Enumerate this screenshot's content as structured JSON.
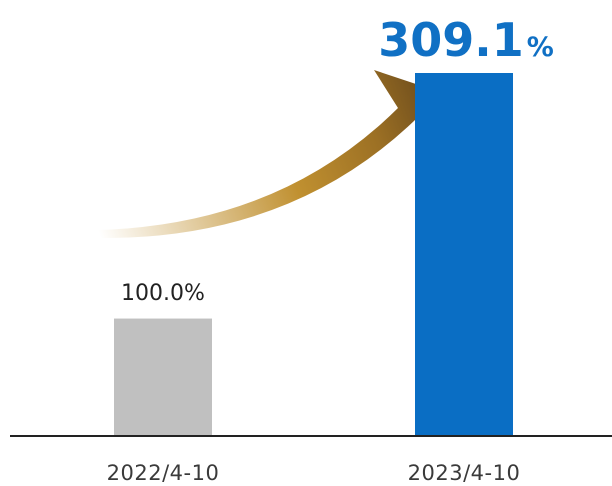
{
  "chart_data": {
    "type": "bar",
    "categories": [
      "2022/4-10",
      "2023/4-10"
    ],
    "values": [
      100.0,
      309.1
    ],
    "unit": "%",
    "data_labels": [
      {
        "number": "100.0",
        "unit": "%"
      },
      {
        "number": "309.1",
        "unit": "%"
      }
    ],
    "colors": [
      "#c0c0c0",
      "#0a6ec4"
    ],
    "label_color": "#1070c4",
    "arrow_gradient": [
      "#ffffff",
      "#c09030",
      "#9c7024",
      "#6a4a1c"
    ],
    "axis_color": "#222222",
    "ylim": [
      0,
      330
    ],
    "grid": false,
    "legend": "none",
    "annotation": "curved growth arrow from first bar to second bar"
  }
}
